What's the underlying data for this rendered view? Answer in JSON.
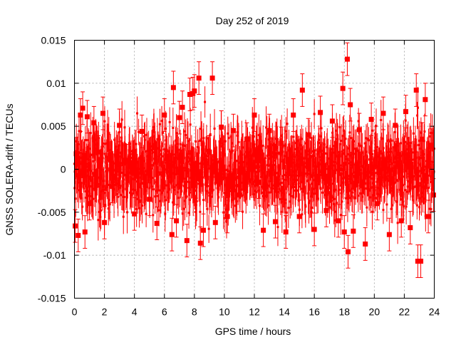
{
  "chart_data": {
    "type": "scatter",
    "title": "Day 252 of 2019",
    "xlabel": "GPS time / hours",
    "ylabel": "GNSS SOLERA-drift / TECUs",
    "xlim": [
      0,
      24
    ],
    "ylim": [
      -0.015,
      0.015
    ],
    "xticks": [
      0,
      2,
      4,
      6,
      8,
      10,
      12,
      14,
      16,
      18,
      20,
      22,
      24
    ],
    "yticks": [
      -0.015,
      -0.01,
      -0.005,
      0,
      0.005,
      0.01,
      0.015
    ],
    "ytick_labels": [
      "-0.015",
      "-0.01",
      "-0.005",
      "0",
      "0.005",
      "0.01",
      "0.015"
    ],
    "grid": true,
    "legend": "none",
    "series": [
      {
        "color": "#ff0000",
        "marker": "square",
        "error_bars": true,
        "typical_error": 0.0019,
        "points": [
          [
            0.05,
            -0.0066
          ],
          [
            0.12,
            0.0018
          ],
          [
            0.25,
            -0.0077
          ],
          [
            0.4,
            0.0063
          ],
          [
            0.55,
            0.0071
          ],
          [
            0.7,
            -0.0073
          ],
          [
            0.85,
            0.0061
          ],
          [
            1.0,
            -0.004
          ],
          [
            1.3,
            0.0054
          ],
          [
            1.6,
            0.002
          ],
          [
            1.9,
            0.0065
          ],
          [
            2.0,
            -0.0062
          ],
          [
            2.5,
            -0.002
          ],
          [
            3.0,
            0.0051
          ],
          [
            3.5,
            0.001
          ],
          [
            4.0,
            -0.0052
          ],
          [
            4.5,
            0.0044
          ],
          [
            5.0,
            -0.0035
          ],
          [
            5.5,
            -0.0063
          ],
          [
            6.0,
            0.0063
          ],
          [
            6.5,
            -0.0076
          ],
          [
            6.6,
            0.0095
          ],
          [
            6.8,
            -0.006
          ],
          [
            7.0,
            0.006
          ],
          [
            7.2,
            0.0072
          ],
          [
            7.5,
            -0.0083
          ],
          [
            7.7,
            0.0087
          ],
          [
            7.9,
            0.0088
          ],
          [
            8.0,
            0.0091
          ],
          [
            8.3,
            0.0106
          ],
          [
            8.4,
            -0.0086
          ],
          [
            8.6,
            -0.0071
          ],
          [
            9.0,
            0.002
          ],
          [
            9.2,
            0.0106
          ],
          [
            9.4,
            -0.0062
          ],
          [
            9.8,
            0.0049
          ],
          [
            10.2,
            -0.0055
          ],
          [
            10.6,
            0.0045
          ],
          [
            11.0,
            -0.003
          ],
          [
            11.5,
            0.0035
          ],
          [
            12.0,
            0.0063
          ],
          [
            12.3,
            -0.0015
          ],
          [
            12.6,
            -0.0071
          ],
          [
            13.0,
            0.0045
          ],
          [
            13.4,
            -0.0061
          ],
          [
            13.8,
            0.003
          ],
          [
            14.1,
            -0.0073
          ],
          [
            14.6,
            0.0063
          ],
          [
            15.0,
            -0.0055
          ],
          [
            15.2,
            0.0092
          ],
          [
            15.6,
            0.004
          ],
          [
            16.0,
            -0.007
          ],
          [
            16.4,
            0.0066
          ],
          [
            16.8,
            -0.0048
          ],
          [
            17.2,
            0.0056
          ],
          [
            17.6,
            -0.006
          ],
          [
            17.9,
            0.0094
          ],
          [
            18.0,
            -0.0073
          ],
          [
            18.2,
            0.0128
          ],
          [
            18.25,
            -0.0096
          ],
          [
            18.4,
            0.0075
          ],
          [
            18.6,
            -0.0072
          ],
          [
            19.0,
            0.0046
          ],
          [
            19.4,
            -0.0087
          ],
          [
            19.8,
            0.0058
          ],
          [
            20.2,
            -0.004
          ],
          [
            20.6,
            0.0065
          ],
          [
            21.0,
            -0.0076
          ],
          [
            21.4,
            0.0051
          ],
          [
            21.8,
            -0.006
          ],
          [
            22.1,
            0.0067
          ],
          [
            22.4,
            -0.0068
          ],
          [
            22.8,
            0.0092
          ],
          [
            22.9,
            -0.0107
          ],
          [
            23.1,
            -0.0107
          ],
          [
            23.2,
            0.0035
          ],
          [
            23.4,
            0.0081
          ],
          [
            23.6,
            -0.0055
          ],
          [
            23.8,
            0.0028
          ],
          [
            23.95,
            -0.003
          ]
        ]
      }
    ]
  }
}
